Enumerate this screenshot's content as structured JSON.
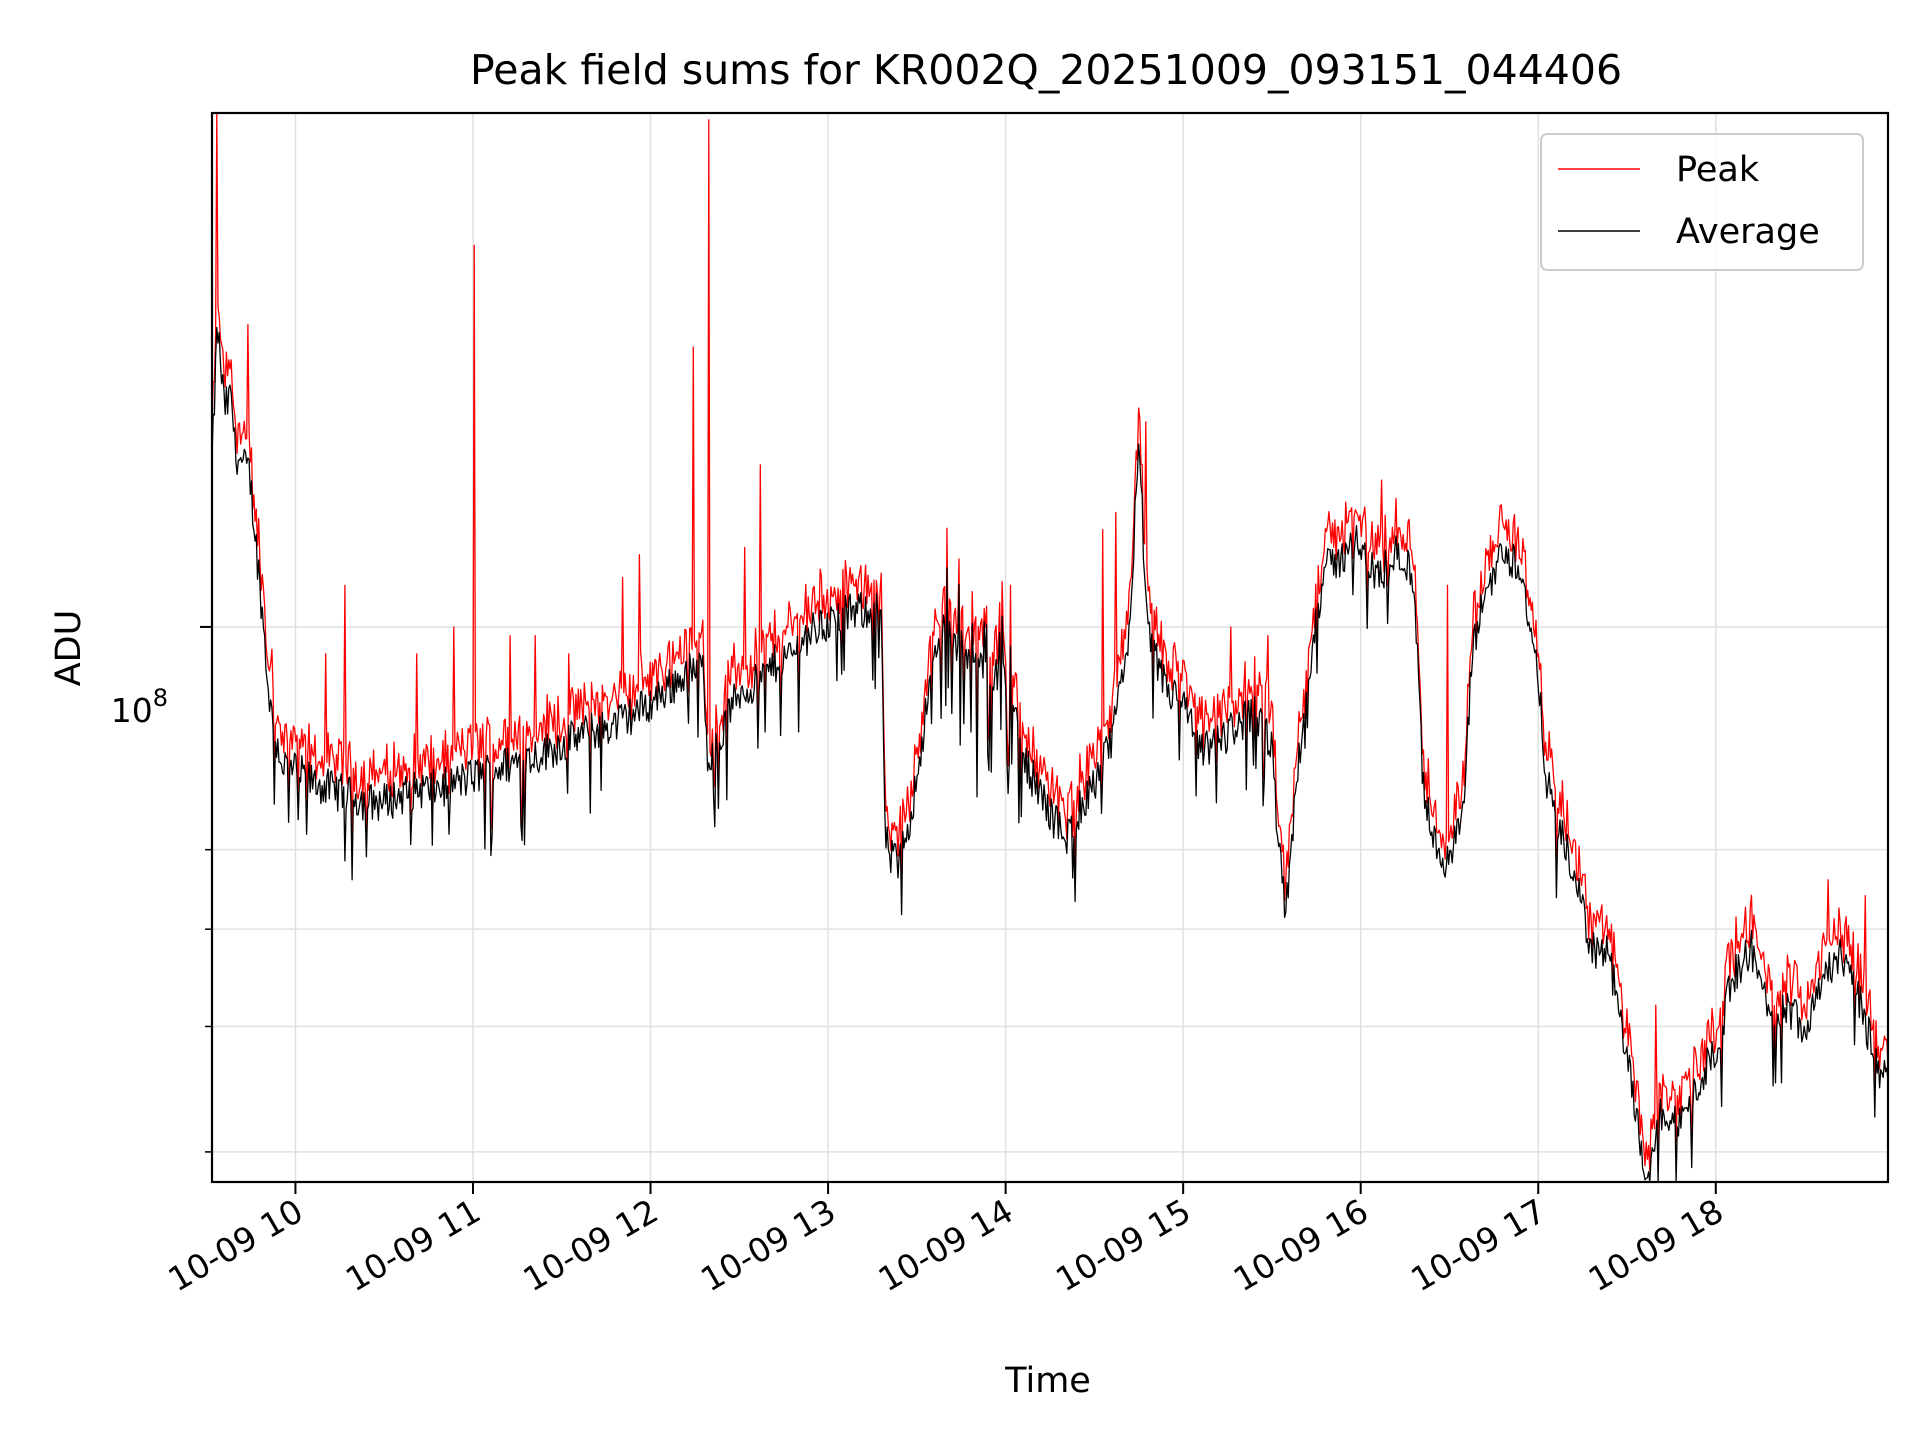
{
  "chart_data": {
    "type": "line",
    "title": "Peak field sums for KR002Q_20251009_093151_044406",
    "xlabel": "Time",
    "ylabel": "ADU",
    "yscale": "log",
    "y_tick_label": {
      "base": "10",
      "exp": "8"
    },
    "xlim_hours": [
      9.53,
      18.97
    ],
    "ylim": [
      28000000,
      325000000
    ],
    "y_major_tick": 100000000,
    "y_minor_ticks": [
      30000000,
      40000000,
      50000000,
      60000000
    ],
    "x_tick_hours": [
      10,
      11,
      12,
      13,
      14,
      15,
      16,
      17,
      18
    ],
    "x_tick_labels": [
      "10-09 10",
      "10-09 11",
      "10-09 12",
      "10-09 13",
      "10-09 14",
      "10-09 15",
      "10-09 16",
      "10-09 17",
      "10-09 18"
    ],
    "grid": true,
    "legend": {
      "placement": "top-right",
      "entries": [
        "Peak",
        "Average"
      ]
    },
    "colors": {
      "Peak": "#ff0000",
      "Average": "#000000",
      "grid": "#e0e0e0"
    },
    "series_baseline": {
      "name": "Average",
      "hours": [
        9.53,
        9.56,
        9.6,
        9.64,
        9.66,
        9.7,
        9.74,
        9.78,
        9.81,
        9.84,
        9.87,
        9.9,
        9.93,
        10.0,
        10.1,
        10.2,
        10.3,
        10.4,
        10.5,
        10.6,
        10.7,
        10.8,
        10.9,
        11.0,
        11.2,
        11.4,
        11.6,
        11.8,
        12.0,
        12.1,
        12.18,
        12.2,
        12.3,
        12.32,
        12.38,
        12.45,
        12.5,
        12.6,
        12.7,
        12.8,
        12.9,
        13.0,
        13.1,
        13.2,
        13.3,
        13.32,
        13.35,
        13.4,
        13.48,
        13.55,
        13.6,
        13.65,
        13.7,
        13.8,
        13.9,
        14.0,
        14.1,
        14.2,
        14.3,
        14.35,
        14.4,
        14.5,
        14.6,
        14.65,
        14.7,
        14.75,
        14.8,
        14.9,
        15.0,
        15.05,
        15.1,
        15.2,
        15.3,
        15.4,
        15.5,
        15.53,
        15.58,
        15.65,
        15.7,
        15.75,
        15.8,
        15.85,
        15.9,
        15.95,
        16.0,
        16.1,
        16.2,
        16.3,
        16.35,
        16.4,
        16.5,
        16.58,
        16.63,
        16.7,
        16.8,
        16.9,
        17.0,
        17.05,
        17.1,
        17.2,
        17.3,
        17.4,
        17.5,
        17.55,
        17.6,
        17.65,
        17.7,
        17.8,
        17.9,
        18.0,
        18.1,
        18.2,
        18.3,
        18.4,
        18.5,
        18.6,
        18.7,
        18.8,
        18.9,
        18.97
      ],
      "values": [
        145000000,
        200000000,
        165000000,
        170000000,
        150000000,
        145000000,
        143000000,
        120000000,
        105000000,
        90000000,
        80000000,
        76000000,
        73000000,
        72000000,
        70000000,
        69000000,
        68000000,
        67000000,
        67000000,
        68000000,
        69000000,
        69000000,
        70000000,
        71000000,
        73000000,
        75000000,
        78000000,
        80000000,
        84000000,
        87000000,
        89000000,
        90000000,
        91000000,
        75000000,
        76000000,
        83000000,
        86000000,
        88000000,
        92000000,
        94000000,
        99000000,
        101000000,
        103000000,
        104000000,
        105000000,
        62000000,
        59000000,
        58000000,
        67000000,
        82000000,
        95000000,
        100000000,
        97000000,
        93000000,
        91000000,
        89000000,
        74000000,
        68000000,
        63000000,
        62000000,
        65000000,
        70000000,
        77000000,
        88000000,
        100000000,
        155000000,
        98000000,
        87000000,
        84000000,
        79000000,
        75000000,
        77000000,
        80000000,
        82000000,
        76000000,
        62000000,
        52000000,
        74000000,
        89000000,
        103000000,
        114000000,
        116000000,
        117000000,
        125000000,
        118000000,
        112000000,
        119000000,
        112000000,
        70000000,
        62000000,
        58000000,
        66000000,
        95000000,
        108000000,
        119000000,
        115000000,
        88000000,
        70000000,
        64000000,
        57000000,
        48000000,
        47000000,
        37000000,
        33000000,
        29000000,
        31000000,
        33000000,
        32000000,
        35000000,
        38000000,
        45000000,
        48000000,
        41000000,
        42000000,
        40000000,
        45000000,
        47000000,
        43000000,
        37000000,
        35000000
      ]
    },
    "spikes": {
      "name": "Peak",
      "hours": [
        9.56,
        9.73,
        9.87,
        10.17,
        10.28,
        10.68,
        10.89,
        11.01,
        11.21,
        11.35,
        11.54,
        11.84,
        11.94,
        12.24,
        12.33,
        12.53,
        12.62,
        13.05,
        13.63,
        14.03,
        14.55,
        14.62,
        14.79,
        15.27,
        15.48,
        16.12,
        16.49,
        17.22,
        17.4,
        17.66,
        18.14,
        18.63,
        18.71,
        18.84
      ],
      "values": [
        340000000,
        200000000,
        95000000,
        94000000,
        110000000,
        94000000,
        100000000,
        240000000,
        98000000,
        98000000,
        94000000,
        112000000,
        118000000,
        190000000,
        320000000,
        120000000,
        145000000,
        104000000,
        100000000,
        110000000,
        125000000,
        130000000,
        160000000,
        100000000,
        98000000,
        140000000,
        110000000,
        56000000,
        50000000,
        42000000,
        49000000,
        56000000,
        48000000,
        54000000
      ]
    }
  }
}
